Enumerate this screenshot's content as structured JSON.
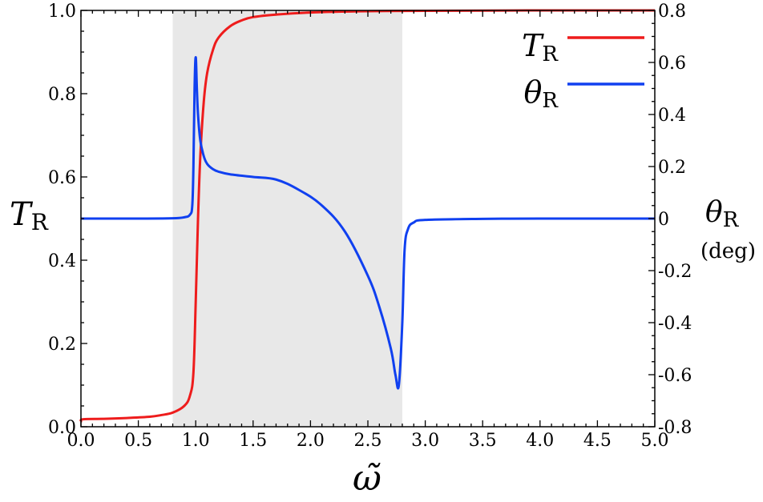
{
  "chart_data": {
    "type": "line",
    "xlabel": "ω̃",
    "ylabel_left": "T",
    "ylabel_left_sub": "R",
    "ylabel_right": "θ",
    "ylabel_right_sub": "R",
    "ylabel_right_unit": "(deg)",
    "xlim": [
      0,
      5
    ],
    "ylim_left": [
      0,
      1
    ],
    "ylim_right": [
      -0.8,
      0.8
    ],
    "x_ticks": [
      "0.0",
      "0.5",
      "1.0",
      "1.5",
      "2.0",
      "2.5",
      "3.0",
      "3.5",
      "4.0",
      "4.5",
      "5.0"
    ],
    "y_left_ticks": [
      "0.0",
      "0.2",
      "0.4",
      "0.6",
      "0.8",
      "1.0"
    ],
    "y_right_ticks": [
      "-0.8",
      "-0.6",
      "-0.4",
      "-0.2",
      "0",
      "0.2",
      "0.4",
      "0.6",
      "0.8"
    ],
    "shaded_band": {
      "x_start": 0.8,
      "x_end": 2.8,
      "color": "#e8e8e8"
    },
    "grid": false,
    "legend_placement": "top-right",
    "series": [
      {
        "name": "T",
        "name_sub": "R",
        "axis": "left",
        "color": "#ee1c1c",
        "x": [
          0.0,
          0.02,
          0.2,
          0.4,
          0.6,
          0.7,
          0.8,
          0.9,
          0.95,
          0.98,
          1.0,
          1.02,
          1.04,
          1.07,
          1.1,
          1.15,
          1.2,
          1.3,
          1.4,
          1.5,
          1.7,
          2.0,
          2.5,
          3.0,
          4.0,
          5.0
        ],
        "values": [
          0.012,
          0.018,
          0.019,
          0.021,
          0.024,
          0.028,
          0.034,
          0.05,
          0.075,
          0.13,
          0.3,
          0.5,
          0.65,
          0.78,
          0.85,
          0.905,
          0.935,
          0.962,
          0.976,
          0.984,
          0.99,
          0.995,
          0.998,
          0.999,
          1.0,
          1.0
        ]
      },
      {
        "name": "θ",
        "name_sub": "R",
        "axis": "right",
        "color": "#1040f0",
        "x": [
          0.0,
          0.5,
          0.8,
          0.9,
          0.95,
          0.97,
          0.98,
          0.99,
          1.0,
          1.01,
          1.02,
          1.04,
          1.07,
          1.1,
          1.15,
          1.2,
          1.3,
          1.5,
          1.7,
          1.9,
          2.1,
          2.3,
          2.5,
          2.6,
          2.7,
          2.74,
          2.77,
          2.8,
          2.82,
          2.85,
          2.9,
          3.0,
          3.5,
          4.0,
          5.0
        ],
        "values": [
          0.0,
          0.0,
          0.001,
          0.005,
          0.015,
          0.05,
          0.2,
          0.5,
          0.62,
          0.5,
          0.4,
          0.3,
          0.24,
          0.21,
          0.19,
          0.18,
          0.17,
          0.16,
          0.15,
          0.11,
          0.05,
          -0.05,
          -0.22,
          -0.34,
          -0.5,
          -0.6,
          -0.64,
          -0.4,
          -0.12,
          -0.04,
          -0.015,
          -0.005,
          -0.001,
          0.0,
          0.0
        ]
      }
    ]
  }
}
